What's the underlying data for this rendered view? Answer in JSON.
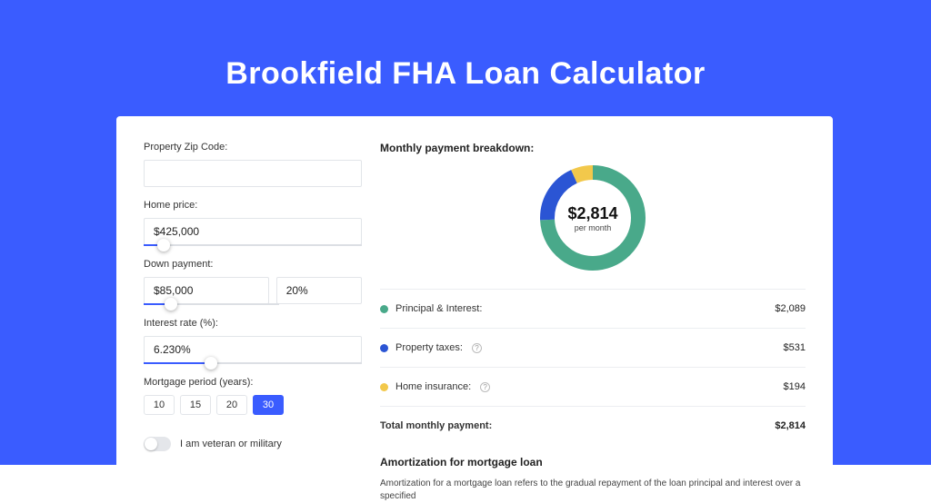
{
  "colors": {
    "page_bg": "#3a5cff",
    "card_bg": "#ffffff",
    "accent": "#3a5cff",
    "text": "#222222",
    "muted": "#666666",
    "donut_principal": "#49a98a",
    "donut_tax": "#2b55d4",
    "donut_insurance": "#f2c84b"
  },
  "header": {
    "title": "Brookfield FHA Loan Calculator"
  },
  "form": {
    "zip_label": "Property Zip Code:",
    "zip_value": "",
    "home_price_label": "Home price:",
    "home_price_value": "$425,000",
    "home_price_slider_pct": 9,
    "down_payment_label": "Down payment:",
    "down_payment_value": "$85,000",
    "down_payment_pct_value": "20%",
    "down_payment_slider_pct": 20,
    "interest_label": "Interest rate (%):",
    "interest_value": "6.230%",
    "interest_slider_pct": 31,
    "period_label": "Mortgage period (years):",
    "periods": [
      {
        "label": "10",
        "active": false
      },
      {
        "label": "15",
        "active": false
      },
      {
        "label": "20",
        "active": false
      },
      {
        "label": "30",
        "active": true
      }
    ],
    "veteran_label": "I am veteran or military"
  },
  "breakdown": {
    "title": "Monthly payment breakdown:",
    "center_amount": "$2,814",
    "center_sub": "per month",
    "donut": {
      "slices": [
        {
          "key": "principal",
          "color": "#49a98a",
          "fraction": 0.742
        },
        {
          "key": "tax",
          "color": "#2b55d4",
          "fraction": 0.189
        },
        {
          "key": "insurance",
          "color": "#f2c84b",
          "fraction": 0.069
        }
      ],
      "stroke_width": 16
    },
    "rows": [
      {
        "dot": "#49a98a",
        "label": "Principal & Interest:",
        "value": "$2,089",
        "info": false
      },
      {
        "dot": "#2b55d4",
        "label": "Property taxes:",
        "value": "$531",
        "info": true
      },
      {
        "dot": "#f2c84b",
        "label": "Home insurance:",
        "value": "$194",
        "info": true
      }
    ],
    "total_label": "Total monthly payment:",
    "total_value": "$2,814"
  },
  "amortization": {
    "title": "Amortization for mortgage loan",
    "body": "Amortization for a mortgage loan refers to the gradual repayment of the loan principal and interest over a specified"
  }
}
